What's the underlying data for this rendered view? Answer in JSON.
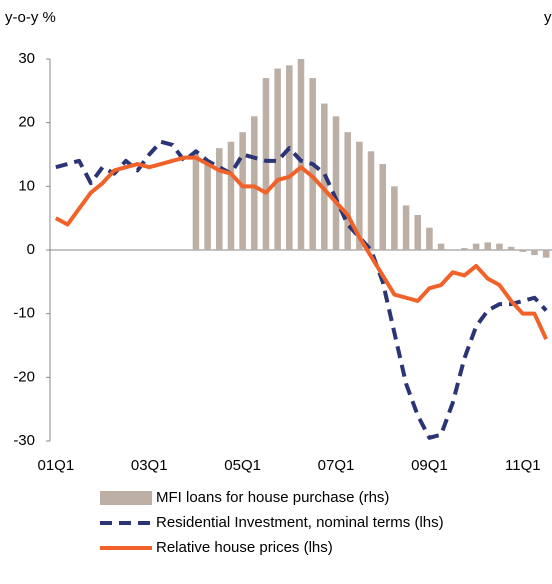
{
  "chart_data": {
    "type": "line",
    "ylabel": "y-o-y %",
    "y2label": "y",
    "categories": [
      "01Q1",
      null,
      null,
      null,
      null,
      null,
      null,
      null,
      "03Q1",
      null,
      null,
      null,
      null,
      null,
      null,
      null,
      "05Q1",
      null,
      null,
      null,
      null,
      null,
      null,
      null,
      "07Q1",
      null,
      null,
      null,
      null,
      null,
      null,
      null,
      "09Q1",
      null,
      null,
      null,
      null,
      null,
      null,
      null,
      "11Q1",
      null,
      null
    ],
    "ylim": [
      -30,
      30
    ],
    "yticks": [
      -30,
      -20,
      -10,
      0,
      10,
      20,
      30
    ],
    "y2lim": [
      -30,
      30
    ],
    "series": [
      {
        "name": "MFI loans for house purchase (rhs)",
        "type": "bar",
        "axis": "y2",
        "color": "#bcafa6",
        "values": [
          null,
          null,
          null,
          null,
          null,
          null,
          null,
          null,
          null,
          null,
          null,
          null,
          15,
          14,
          16,
          17,
          18.5,
          21,
          27,
          28.5,
          29,
          30,
          27,
          23,
          21,
          18.5,
          17,
          15.5,
          13.5,
          10,
          7,
          5.5,
          3.5,
          1,
          0,
          0.3,
          1,
          1.2,
          1,
          0.5,
          -0.3,
          -0.8,
          -1.2
        ]
      },
      {
        "name": "Residential Investment, nominal terms (lhs)",
        "type": "line",
        "dashed": true,
        "color": "#2b3575",
        "values": [
          13,
          13.5,
          14,
          10.5,
          13,
          12,
          14,
          12.5,
          15,
          17,
          16.5,
          14,
          15.5,
          14,
          13,
          12,
          15,
          14.5,
          14,
          14,
          16,
          14,
          13.5,
          12,
          8,
          4,
          2,
          0,
          -5,
          -13,
          -21,
          -26,
          -29.5,
          -29,
          -24,
          -17,
          -12,
          -9.5,
          -8.5,
          -8.5,
          -8,
          -7.5,
          -9.5
        ]
      },
      {
        "name": "Relative house prices (lhs)",
        "type": "line",
        "color": "#f0622a",
        "values": [
          5,
          4,
          6.5,
          9,
          10.5,
          12.5,
          13,
          13.5,
          13,
          13.5,
          14,
          14.5,
          14.5,
          13.5,
          12.5,
          12,
          10,
          10,
          9,
          11,
          11.5,
          13,
          11.5,
          9.5,
          7.5,
          5.5,
          2,
          -1,
          -4,
          -7,
          -7.5,
          -8,
          -6,
          -5.5,
          -3.5,
          -4,
          -2.5,
          -4.5,
          -5.5,
          -8,
          -10,
          -10,
          -14
        ]
      }
    ]
  }
}
